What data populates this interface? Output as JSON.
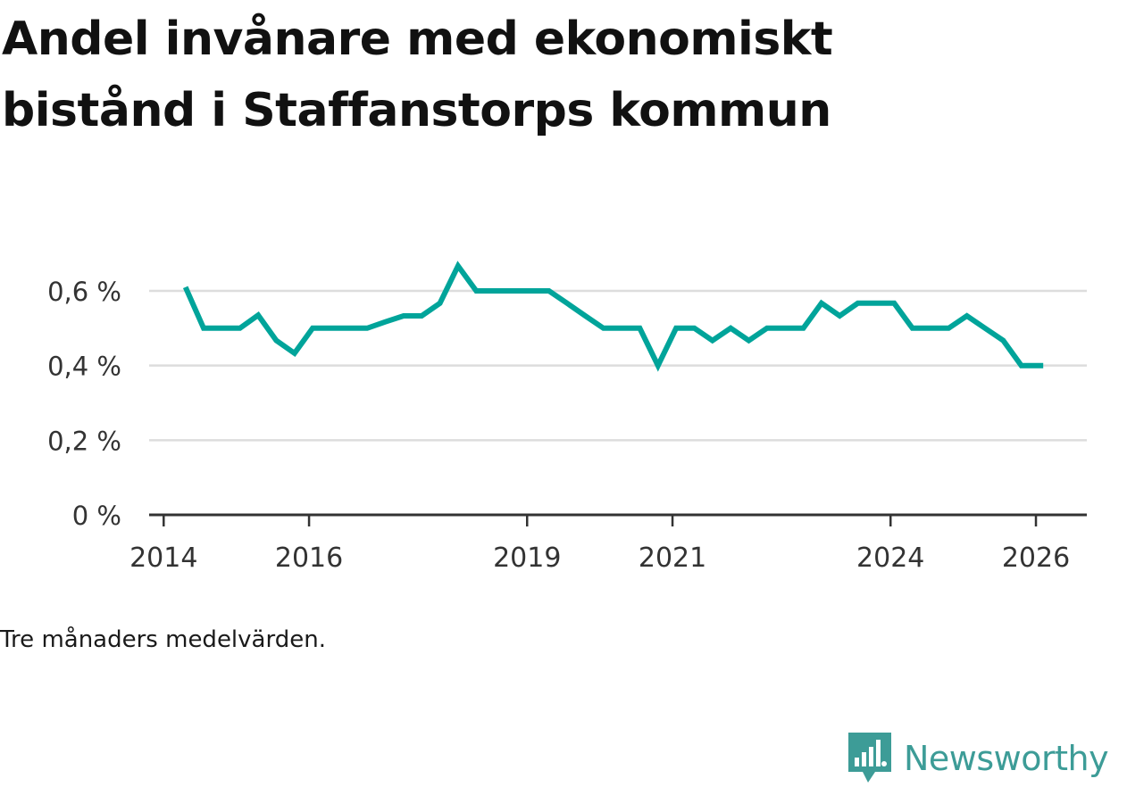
{
  "chart_data": {
    "type": "line",
    "title": [
      "Andel invånare med ekonomiskt",
      "bistånd i Staffanstorps kommun"
    ],
    "caption": "Tre månaders medelvärden.",
    "brand": "Newsworthy",
    "line_color": "#00a49a",
    "ylim": [
      0,
      0.7
    ],
    "yticks": [
      0,
      0.2,
      0.4,
      0.6
    ],
    "ytick_labels": [
      "0 %",
      "0,2 %",
      "0,4 %",
      "0,6 %"
    ],
    "xlim": [
      2013.8,
      2026.7
    ],
    "xticks": [
      2014,
      2016,
      2019,
      2021,
      2024,
      2026
    ],
    "xtick_labels": [
      "2014",
      "2016",
      "2019",
      "2021",
      "2024",
      "2026"
    ],
    "series": [
      {
        "name": "Andel invånare med ekonomiskt bistånd",
        "x": [
          2014.3,
          2014.55,
          2014.8,
          2015.05,
          2015.3,
          2015.55,
          2015.8,
          2016.05,
          2016.3,
          2016.55,
          2016.8,
          2017.05,
          2017.3,
          2017.55,
          2017.8,
          2018.05,
          2018.3,
          2018.55,
          2018.8,
          2019.05,
          2019.3,
          2019.55,
          2019.8,
          2020.05,
          2020.3,
          2020.55,
          2020.8,
          2021.05,
          2021.3,
          2021.55,
          2021.8,
          2022.05,
          2022.3,
          2022.55,
          2022.8,
          2023.05,
          2023.3,
          2023.55,
          2023.8,
          2024.05,
          2024.3,
          2024.55,
          2024.8,
          2025.05,
          2025.3,
          2025.55,
          2025.8,
          2026.1
        ],
        "values": [
          0.61,
          0.5,
          0.5,
          0.5,
          0.535,
          0.467,
          0.433,
          0.5,
          0.5,
          0.5,
          0.5,
          0.517,
          0.533,
          0.533,
          0.567,
          0.667,
          0.6,
          0.6,
          0.6,
          0.6,
          0.6,
          0.567,
          0.533,
          0.5,
          0.5,
          0.5,
          0.4,
          0.5,
          0.5,
          0.467,
          0.5,
          0.467,
          0.5,
          0.5,
          0.5,
          0.567,
          0.533,
          0.567,
          0.567,
          0.567,
          0.5,
          0.5,
          0.5,
          0.533,
          0.5,
          0.467,
          0.4,
          0.4
        ]
      }
    ]
  }
}
